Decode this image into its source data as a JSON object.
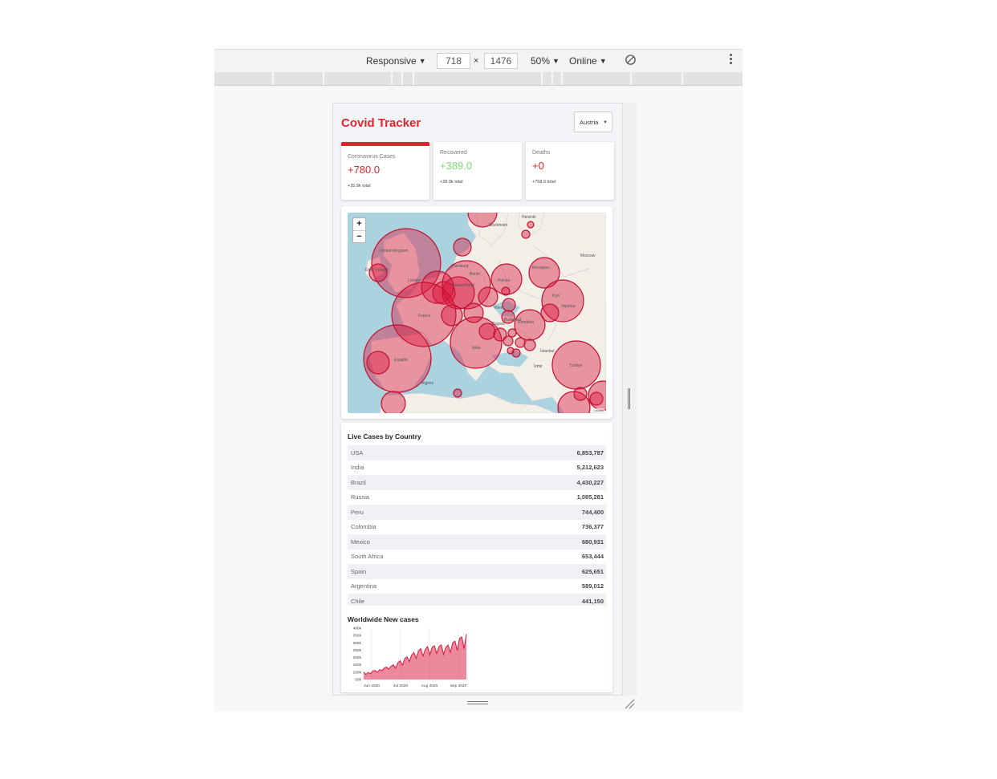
{
  "devtools": {
    "device": "Responsive",
    "width": "718",
    "height": "1476",
    "zoom": "50%",
    "network": "Online"
  },
  "app": {
    "title": "Covid Tracker",
    "selected_country": "Austria"
  },
  "stats": [
    {
      "label": "Coronavirus Cases",
      "value": "+780.0",
      "total": "+35.9k total",
      "color": "#e0242e",
      "active": true
    },
    {
      "label": "Recovered",
      "value": "+389.0",
      "total": "+28.0k total",
      "color": "#77dd77",
      "active": false
    },
    {
      "label": "Deaths",
      "value": "+0",
      "total": "+758.0 total",
      "color": "#e0242e",
      "active": false
    }
  ],
  "map": {
    "attribution": "Leaflet",
    "labels": [
      "United Kingdom",
      "Éire / Ireland",
      "London",
      "Deutschland",
      "Polska",
      "France",
      "España",
      "Italia",
      "Беларусь",
      "Україна",
      "România",
      "Türkiye",
      "Stockholm",
      "Helsinki",
      "Moscow",
      "Berlin",
      "Hamburg",
      "Kyiv",
      "Wien",
      "Budapest",
      "Zagreb",
      "Algiers",
      "İstanbul",
      "İzmir"
    ]
  },
  "live_cases": {
    "title": "Live Cases by Country",
    "rows": [
      {
        "country": "USA",
        "cases": "6,853,787"
      },
      {
        "country": "India",
        "cases": "5,212,623"
      },
      {
        "country": "Brazil",
        "cases": "4,430,227"
      },
      {
        "country": "Russia",
        "cases": "1,085,281"
      },
      {
        "country": "Peru",
        "cases": "744,400"
      },
      {
        "country": "Colombia",
        "cases": "736,377"
      },
      {
        "country": "Mexico",
        "cases": "680,931"
      },
      {
        "country": "South Africa",
        "cases": "653,444"
      },
      {
        "country": "Spain",
        "cases": "625,651"
      },
      {
        "country": "Argentina",
        "cases": "589,012"
      },
      {
        "country": "Chile",
        "cases": "441,150"
      }
    ]
  },
  "chart_data": {
    "type": "area",
    "title": "Worldwide New cases",
    "y_ticks": [
      "400k",
      "350k",
      "300k",
      "250k",
      "200k",
      "150k",
      "100k",
      "50k"
    ],
    "x_ticks": [
      "Jun 2020",
      "Jul 2020",
      "Aug 2020",
      "Sep 2020"
    ],
    "ylim": [
      50000,
      400000
    ],
    "series": [
      {
        "values": [
          100000,
          85000,
          98000,
          90000,
          108000,
          112000,
          98000,
          118000,
          110000,
          128000,
          135000,
          120000,
          140000,
          150000,
          128000,
          165000,
          178000,
          148000,
          192000,
          205000,
          172000,
          215000,
          235000,
          195000,
          245000,
          260000,
          210000,
          255000,
          275000,
          218000,
          270000,
          280000,
          228000,
          275000,
          285000,
          222000,
          270000,
          285000,
          235000,
          300000,
          312000,
          248000,
          330000,
          340000,
          260000,
          360000
        ]
      }
    ],
    "color": "#dc143c"
  }
}
